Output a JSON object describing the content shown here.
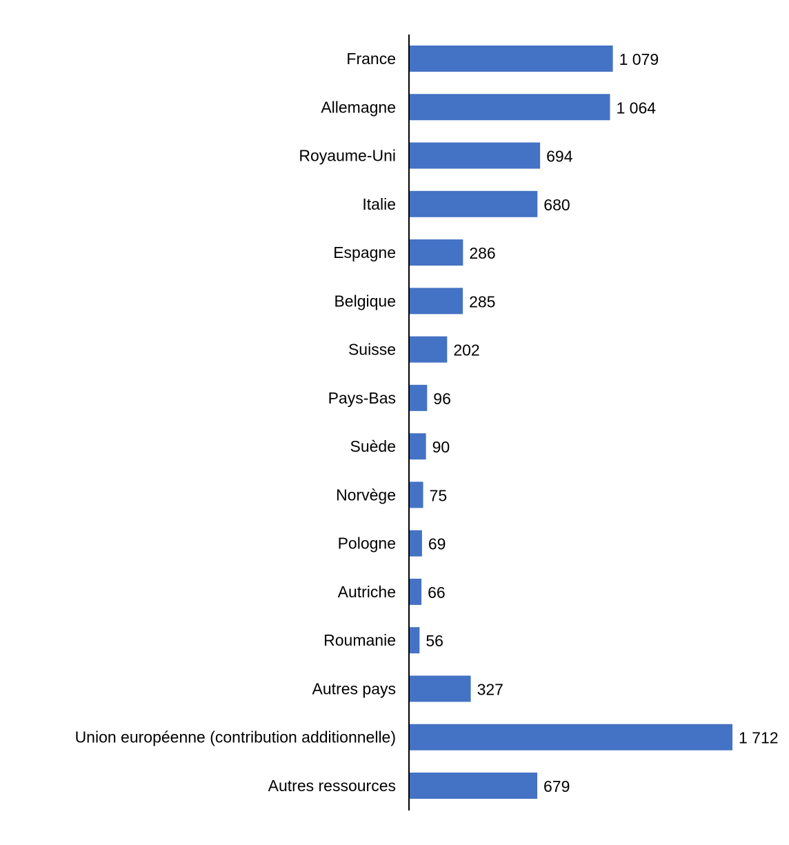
{
  "chart_data": {
    "type": "bar",
    "orientation": "horizontal",
    "title": "",
    "xlabel": "",
    "ylabel": "",
    "categories": [
      "France",
      "Allemagne",
      "Royaume-Uni",
      "Italie",
      "Espagne",
      "Belgique",
      "Suisse",
      "Pays-Bas",
      "Suède",
      "Norvège",
      "Pologne",
      "Autriche",
      "Roumanie",
      "Autres pays",
      "Union européenne (contribution additionnelle)",
      "Autres ressources"
    ],
    "values": [
      1079,
      1064,
      694,
      680,
      286,
      285,
      202,
      96,
      90,
      75,
      69,
      66,
      56,
      327,
      1712,
      679
    ],
    "value_labels": [
      "1 079",
      "1 064",
      "694",
      "680",
      "286",
      "285",
      "202",
      "96",
      "90",
      "75",
      "69",
      "66",
      "56",
      "327",
      "1 712",
      "679"
    ],
    "xlim": [
      0,
      1712
    ],
    "grid": false,
    "legend": "none",
    "bar_color": "#4472C4"
  }
}
